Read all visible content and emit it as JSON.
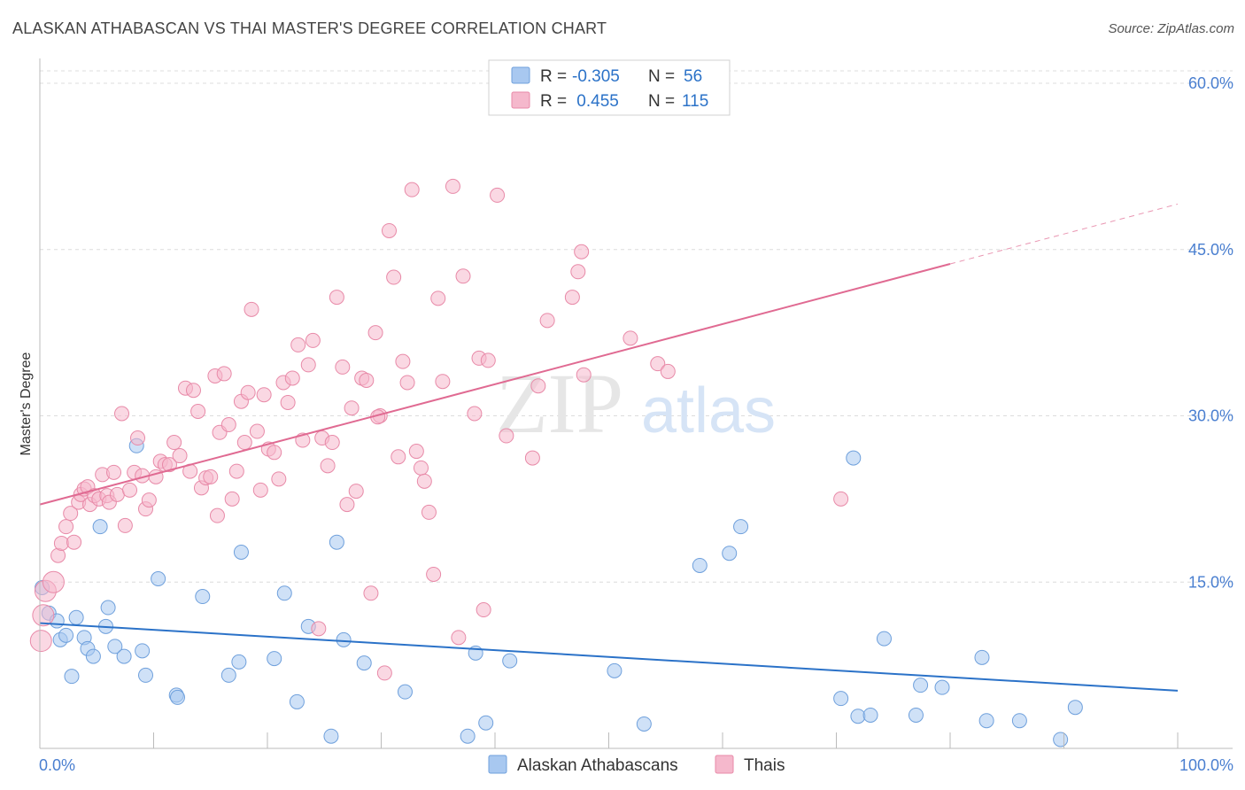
{
  "header": {
    "title": "ALASKAN ATHABASCAN VS THAI MASTER'S DEGREE CORRELATION CHART",
    "source": "Source: ZipAtlas.com"
  },
  "watermark": {
    "zip": "ZIP",
    "atlas": "atlas"
  },
  "legend_top": {
    "rows": [
      {
        "r_label": "R =",
        "r_value": "-0.305",
        "n_label": "N =",
        "n_value": "56",
        "color": "#a8c8f0"
      },
      {
        "r_label": "R =",
        "r_value": " 0.455",
        "n_label": "N =",
        "n_value": "115",
        "color": "#f5b8cc"
      }
    ]
  },
  "chart_data": {
    "type": "scatter",
    "title": "ALASKAN ATHABASCAN VS THAI MASTER'S DEGREE CORRELATION CHART",
    "xlabel": "",
    "ylabel": "Master's Degree",
    "xlim": [
      0,
      100
    ],
    "ylim": [
      0,
      60
    ],
    "x_tick_labels": [
      "0.0%",
      "100.0%"
    ],
    "y_tick_labels": [
      "15.0%",
      "30.0%",
      "45.0%",
      "60.0%"
    ],
    "y_ticks": [
      15,
      30,
      45,
      60
    ],
    "grid": true,
    "legend_position": "bottom",
    "series": [
      {
        "name": "Alaskan Athabascans",
        "color": "#a8c8f0",
        "stroke": "#6fa0dc",
        "line_color": "#2b72c8",
        "trend": {
          "x0": 0,
          "y0": 11.3,
          "x1": 100,
          "y1": 5.2
        },
        "points": [
          [
            0.2,
            14.5
          ],
          [
            0.8,
            12.2
          ],
          [
            1.5,
            11.5
          ],
          [
            1.8,
            9.8
          ],
          [
            2.3,
            10.2
          ],
          [
            2.8,
            6.5
          ],
          [
            3.2,
            11.8
          ],
          [
            3.9,
            10.0
          ],
          [
            4.2,
            9.0
          ],
          [
            4.7,
            8.3
          ],
          [
            5.3,
            20.0
          ],
          [
            5.8,
            11.0
          ],
          [
            6.0,
            12.7
          ],
          [
            6.6,
            9.2
          ],
          [
            7.4,
            8.3
          ],
          [
            8.5,
            27.3
          ],
          [
            9.0,
            8.8
          ],
          [
            9.3,
            6.6
          ],
          [
            10.4,
            15.3
          ],
          [
            12.0,
            4.8
          ],
          [
            12.1,
            4.6
          ],
          [
            14.3,
            13.7
          ],
          [
            16.6,
            6.6
          ],
          [
            17.5,
            7.8
          ],
          [
            17.7,
            17.7
          ],
          [
            20.6,
            8.1
          ],
          [
            21.5,
            14.0
          ],
          [
            22.6,
            4.2
          ],
          [
            23.6,
            11.0
          ],
          [
            25.6,
            1.1
          ],
          [
            26.1,
            18.6
          ],
          [
            26.7,
            9.8
          ],
          [
            28.5,
            7.7
          ],
          [
            32.1,
            5.1
          ],
          [
            37.6,
            1.1
          ],
          [
            38.3,
            8.6
          ],
          [
            39.2,
            2.3
          ],
          [
            41.3,
            7.9
          ],
          [
            50.5,
            7.0
          ],
          [
            53.1,
            2.2
          ],
          [
            58.0,
            16.5
          ],
          [
            60.6,
            17.6
          ],
          [
            61.6,
            20.0
          ],
          [
            70.4,
            4.5
          ],
          [
            71.9,
            2.9
          ],
          [
            71.5,
            26.2
          ],
          [
            73.0,
            3.0
          ],
          [
            74.2,
            9.9
          ],
          [
            77.0,
            3.0
          ],
          [
            77.4,
            5.7
          ],
          [
            79.3,
            5.5
          ],
          [
            82.8,
            8.2
          ],
          [
            83.2,
            2.5
          ],
          [
            86.1,
            2.5
          ],
          [
            89.7,
            0.8
          ],
          [
            91.0,
            3.7
          ]
        ]
      },
      {
        "name": "Thais",
        "color": "#f5b8cc",
        "stroke": "#e88aa8",
        "line_color": "#e06a92",
        "trend": {
          "x0": 0,
          "y0": 22.0,
          "x1": 80,
          "y1": 43.7
        },
        "trend_dashed_to": {
          "x": 100,
          "y": 49.1
        },
        "points": [
          [
            0.1,
            9.7
          ],
          [
            0.3,
            12.0
          ],
          [
            0.5,
            14.2
          ],
          [
            1.2,
            15.0
          ],
          [
            1.6,
            17.4
          ],
          [
            1.9,
            18.5
          ],
          [
            2.3,
            20.0
          ],
          [
            2.7,
            21.2
          ],
          [
            3.0,
            18.6
          ],
          [
            3.4,
            22.2
          ],
          [
            3.6,
            22.9
          ],
          [
            3.9,
            23.4
          ],
          [
            4.2,
            23.6
          ],
          [
            4.4,
            22.0
          ],
          [
            4.8,
            22.8
          ],
          [
            5.2,
            22.5
          ],
          [
            5.5,
            24.7
          ],
          [
            5.9,
            22.8
          ],
          [
            6.1,
            22.2
          ],
          [
            6.5,
            24.9
          ],
          [
            6.8,
            22.9
          ],
          [
            7.2,
            30.2
          ],
          [
            7.5,
            20.1
          ],
          [
            7.9,
            23.3
          ],
          [
            8.3,
            24.9
          ],
          [
            8.6,
            28.0
          ],
          [
            9.0,
            24.6
          ],
          [
            9.3,
            21.6
          ],
          [
            9.6,
            22.4
          ],
          [
            10.2,
            24.5
          ],
          [
            10.6,
            25.9
          ],
          [
            11.0,
            25.6
          ],
          [
            11.4,
            25.6
          ],
          [
            11.8,
            27.6
          ],
          [
            12.3,
            26.4
          ],
          [
            12.8,
            32.5
          ],
          [
            13.2,
            25.0
          ],
          [
            13.5,
            32.3
          ],
          [
            13.9,
            30.4
          ],
          [
            14.2,
            23.5
          ],
          [
            14.6,
            24.4
          ],
          [
            15.0,
            24.5
          ],
          [
            15.4,
            33.6
          ],
          [
            15.6,
            21.0
          ],
          [
            15.8,
            28.5
          ],
          [
            16.2,
            33.8
          ],
          [
            16.6,
            29.2
          ],
          [
            16.9,
            22.5
          ],
          [
            17.3,
            25.0
          ],
          [
            17.7,
            31.3
          ],
          [
            18.0,
            27.6
          ],
          [
            18.3,
            32.1
          ],
          [
            18.6,
            39.6
          ],
          [
            19.1,
            28.6
          ],
          [
            19.4,
            23.3
          ],
          [
            19.7,
            31.9
          ],
          [
            20.1,
            27.0
          ],
          [
            20.6,
            26.7
          ],
          [
            21.0,
            24.3
          ],
          [
            21.4,
            33.0
          ],
          [
            21.8,
            31.2
          ],
          [
            22.2,
            33.4
          ],
          [
            22.7,
            36.4
          ],
          [
            23.1,
            27.8
          ],
          [
            23.6,
            34.6
          ],
          [
            24.0,
            36.8
          ],
          [
            24.5,
            10.8
          ],
          [
            24.8,
            28.0
          ],
          [
            25.3,
            25.5
          ],
          [
            25.7,
            27.6
          ],
          [
            26.1,
            40.7
          ],
          [
            26.6,
            34.4
          ],
          [
            27.0,
            22.0
          ],
          [
            27.4,
            30.7
          ],
          [
            27.8,
            23.2
          ],
          [
            28.3,
            33.4
          ],
          [
            28.7,
            33.2
          ],
          [
            29.1,
            14.0
          ],
          [
            29.5,
            37.5
          ],
          [
            29.9,
            30.0
          ],
          [
            30.3,
            6.8
          ],
          [
            30.7,
            46.7
          ],
          [
            31.1,
            42.5
          ],
          [
            31.5,
            26.3
          ],
          [
            31.9,
            34.9
          ],
          [
            32.3,
            33.0
          ],
          [
            32.7,
            50.4
          ],
          [
            33.1,
            26.8
          ],
          [
            33.5,
            25.3
          ],
          [
            33.8,
            24.1
          ],
          [
            34.2,
            21.3
          ],
          [
            34.6,
            15.7
          ],
          [
            35.0,
            40.6
          ],
          [
            35.4,
            33.1
          ],
          [
            36.3,
            50.7
          ],
          [
            36.8,
            10.0
          ],
          [
            37.2,
            42.6
          ],
          [
            38.2,
            30.2
          ],
          [
            38.6,
            35.2
          ],
          [
            39.0,
            12.5
          ],
          [
            39.4,
            35.0
          ],
          [
            40.2,
            49.9
          ],
          [
            41.0,
            28.2
          ],
          [
            43.3,
            26.2
          ],
          [
            43.8,
            32.7
          ],
          [
            44.6,
            38.6
          ],
          [
            46.8,
            40.7
          ],
          [
            47.3,
            43.0
          ],
          [
            47.8,
            33.7
          ],
          [
            47.6,
            44.8
          ],
          [
            51.9,
            37.0
          ],
          [
            54.3,
            34.7
          ],
          [
            55.2,
            34.0
          ],
          [
            70.4,
            22.5
          ],
          [
            29.7,
            29.9
          ]
        ]
      }
    ]
  },
  "legend_bottom": {
    "items": [
      {
        "label": "Alaskan Athabascans",
        "color": "#a8c8f0",
        "stroke": "#6fa0dc"
      },
      {
        "label": "Thais",
        "color": "#f5b8cc",
        "stroke": "#e88aa8"
      }
    ]
  }
}
